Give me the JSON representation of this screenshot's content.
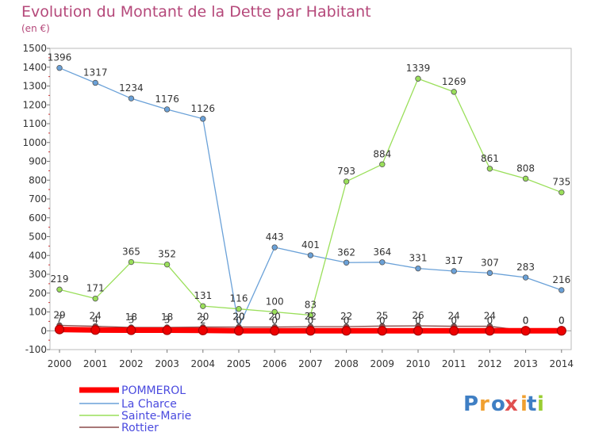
{
  "chart_data": {
    "type": "line",
    "title": "Evolution du Montant de la Dette par Habitant",
    "subtitle": "(en €)",
    "xlabel": "",
    "ylabel": "",
    "ylim": [
      -100,
      1500
    ],
    "yticks": [
      "-100",
      "0",
      "100",
      "200",
      "300",
      "400",
      "500",
      "600",
      "700",
      "800",
      "900",
      "1000",
      "1100",
      "1200",
      "1300",
      "1400",
      "1500"
    ],
    "categories": [
      "2000",
      "2001",
      "2002",
      "2003",
      "2004",
      "2005",
      "2006",
      "2007",
      "2008",
      "2009",
      "2010",
      "2011",
      "2012",
      "2013",
      "2014"
    ],
    "grid": false,
    "legend_position": "bottom-left",
    "series": [
      {
        "name": "POMMEROL",
        "color": "#ff0000",
        "values": [
          7,
          4,
          3,
          3,
          2,
          0,
          0,
          0,
          0,
          0,
          0,
          0,
          0,
          0,
          0
        ],
        "labels": [
          "7",
          "4",
          "3",
          "3",
          "2",
          "0",
          "0",
          "0",
          "0",
          "0",
          "0",
          "0",
          "0",
          "0",
          "0"
        ]
      },
      {
        "name": "La Charce",
        "color": "#6aa1d8",
        "values": [
          1396,
          1317,
          1234,
          1176,
          1126,
          20,
          443,
          401,
          362,
          364,
          331,
          317,
          307,
          283,
          216
        ],
        "labels": [
          "1396",
          "1317",
          "1234",
          "1176",
          "1126",
          "20",
          "443",
          "401",
          "362",
          "364",
          "331",
          "317",
          "307",
          "283",
          "216"
        ]
      },
      {
        "name": "Sainte-Marie",
        "color": "#9adf5a",
        "values": [
          219,
          171,
          365,
          352,
          131,
          116,
          100,
          83,
          793,
          884,
          1339,
          1269,
          861,
          808,
          735
        ],
        "labels": [
          "219",
          "171",
          "365",
          "352",
          "131",
          "116",
          "100",
          "83",
          "793",
          "884",
          "1339",
          "1269",
          "861",
          "808",
          "735"
        ]
      },
      {
        "name": "Rottier",
        "color": "#8a4a4a",
        "values": [
          29,
          24,
          18,
          18,
          20,
          20,
          20,
          22,
          22,
          25,
          26,
          24,
          24,
          0,
          0
        ],
        "labels": [
          "29",
          "24",
          "18",
          "18",
          "20",
          "20",
          "20",
          "22",
          "22",
          "25",
          "26",
          "24",
          "24",
          "0",
          "0"
        ]
      }
    ]
  },
  "logo": {
    "text": "Proxiti"
  }
}
